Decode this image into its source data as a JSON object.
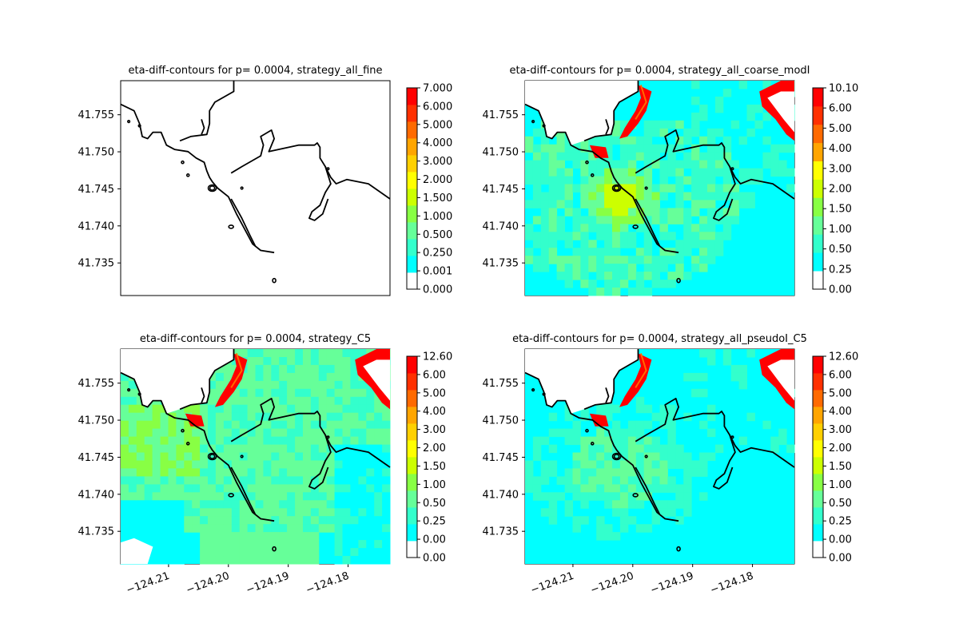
{
  "chart_data": [
    {
      "type": "heatmap",
      "title": "eta-diff-contours for p= 0.0004, strategy_all_fine",
      "xlabel": "",
      "ylabel": "",
      "x_ticks": [],
      "y_ticks": [
        "41.735",
        "41.740",
        "41.745",
        "41.750",
        "41.755"
      ],
      "xlim": [
        -124.218,
        -124.173
      ],
      "ylim": [
        41.7306,
        41.7596
      ],
      "colorbar_ticks": [
        "0.000",
        "0.001",
        "0.250",
        "0.500",
        "1.000",
        "1.500",
        "2.000",
        "3.000",
        "4.000",
        "5.000",
        "6.000",
        "7.000"
      ],
      "colorbar_colors": [
        "#ffffff",
        "#00ffff",
        "#33ffcc",
        "#66ff99",
        "#88ff44",
        "#ccff00",
        "#ffff00",
        "#ffd000",
        "#ffa500",
        "#ff6a00",
        "#ff3000",
        "#ff0000"
      ],
      "field": "none"
    },
    {
      "type": "heatmap",
      "title": "eta-diff-contours for p= 0.0004, strategy_all_coarse_modI",
      "xlabel": "",
      "ylabel": "",
      "x_ticks": [],
      "y_ticks": [
        "41.735",
        "41.740",
        "41.745",
        "41.750",
        "41.755"
      ],
      "xlim": [
        -124.218,
        -124.173
      ],
      "ylim": [
        41.7306,
        41.7596
      ],
      "colorbar_ticks": [
        "0.00",
        "0.25",
        "0.50",
        "1.00",
        "1.50",
        "2.00",
        "3.00",
        "4.00",
        "5.00",
        "6.00",
        "10.10"
      ],
      "colorbar_colors": [
        "#ffffff",
        "#00ffff",
        "#33ffcc",
        "#66ff99",
        "#88ff44",
        "#ccff00",
        "#ffff00",
        "#ffa500",
        "#ff6a00",
        "#ff3000",
        "#ff0000"
      ],
      "field": "coarse"
    },
    {
      "type": "heatmap",
      "title": "eta-diff-contours for p= 0.0004, strategy_C5",
      "xlabel": "",
      "ylabel": "",
      "x_ticks": [
        "−124.21",
        "−124.20",
        "−124.19",
        "−124.18"
      ],
      "y_ticks": [
        "41.735",
        "41.740",
        "41.745",
        "41.750",
        "41.755"
      ],
      "xlim": [
        -124.218,
        -124.173
      ],
      "ylim": [
        41.7306,
        41.7596
      ],
      "colorbar_ticks": [
        "0.00",
        "0.00",
        "0.25",
        "0.50",
        "1.00",
        "1.50",
        "2.00",
        "3.00",
        "4.00",
        "5.00",
        "6.00",
        "12.60"
      ],
      "colorbar_colors": [
        "#ffffff",
        "#00ffff",
        "#33ffcc",
        "#66ff99",
        "#88ff44",
        "#ccff00",
        "#ffff00",
        "#ffd000",
        "#ffa500",
        "#ff6a00",
        "#ff3000",
        "#ff0000"
      ],
      "field": "c5"
    },
    {
      "type": "heatmap",
      "title": "eta-diff-contours for p= 0.0004, strategy_all_pseudoI_C5",
      "xlabel": "",
      "ylabel": "",
      "x_ticks": [
        "−124.21",
        "−124.20",
        "−124.19",
        "−124.18"
      ],
      "y_ticks": [
        "41.735",
        "41.740",
        "41.745",
        "41.750",
        "41.755"
      ],
      "xlim": [
        -124.218,
        -124.173
      ],
      "ylim": [
        41.7306,
        41.7596
      ],
      "colorbar_ticks": [
        "0.00",
        "0.00",
        "0.25",
        "0.50",
        "1.00",
        "1.50",
        "2.00",
        "3.00",
        "4.00",
        "5.00",
        "6.00",
        "12.60"
      ],
      "colorbar_colors": [
        "#ffffff",
        "#00ffff",
        "#33ffcc",
        "#66ff99",
        "#88ff44",
        "#ccff00",
        "#ffff00",
        "#ffd000",
        "#ffa500",
        "#ff6a00",
        "#ff3000",
        "#ff0000"
      ],
      "field": "pseudo"
    }
  ]
}
